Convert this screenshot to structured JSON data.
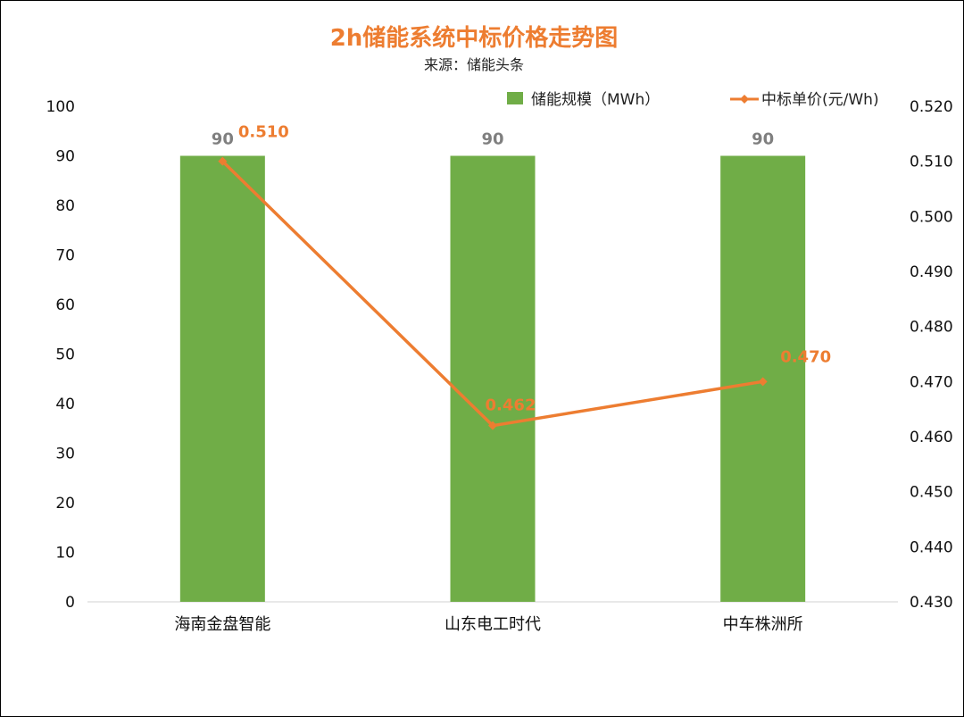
{
  "chart_data": {
    "type": "bar",
    "title": "2h储能系统中标价格走势图",
    "subtitle": "来源：储能头条",
    "categories": [
      "海南金盘智能",
      "山东电工时代",
      "中车株洲所"
    ],
    "series": [
      {
        "name": "储能规模（MWh）",
        "type": "bar",
        "axis": "left",
        "color": "#70AD47",
        "values": [
          90,
          90,
          90
        ],
        "labels": [
          "90",
          "90",
          "90"
        ]
      },
      {
        "name": "中标单价(元/Wh)",
        "type": "line",
        "axis": "right",
        "color": "#ED7D31",
        "values": [
          0.51,
          0.462,
          0.47
        ],
        "labels": [
          "0.510",
          "0.462",
          "0.470"
        ]
      }
    ],
    "y_left": {
      "min": 0,
      "max": 100,
      "ticks": [
        "0",
        "10",
        "20",
        "30",
        "40",
        "50",
        "60",
        "70",
        "80",
        "90",
        "100"
      ]
    },
    "y_right": {
      "min": 0.43,
      "max": 0.52,
      "ticks": [
        "0.430",
        "0.440",
        "0.450",
        "0.460",
        "0.470",
        "0.480",
        "0.490",
        "0.500",
        "0.510",
        "0.520"
      ]
    },
    "legend_position": "top-right",
    "title_color": "#ED7D31"
  }
}
